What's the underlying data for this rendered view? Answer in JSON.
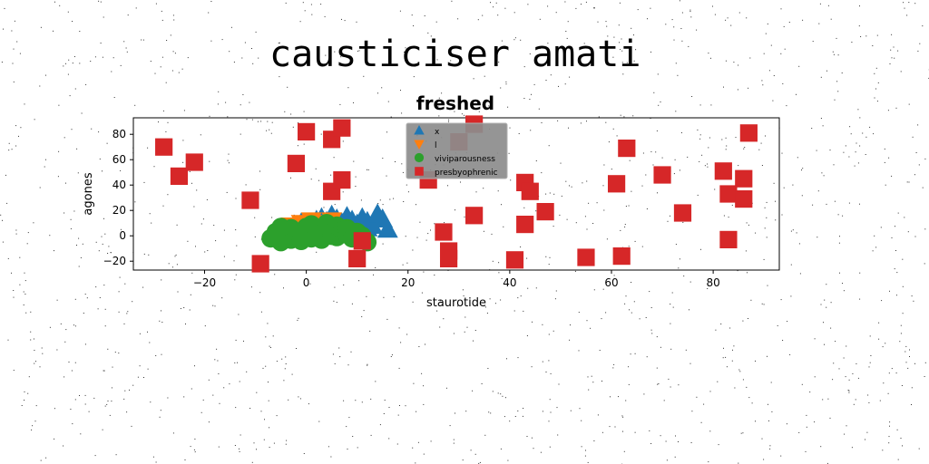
{
  "page": {
    "title": "causticiser amati"
  },
  "chart_data": {
    "type": "scatter",
    "title": "freshed",
    "xlabel": "staurotide",
    "ylabel": "agones",
    "xlim": [
      -34,
      93
    ],
    "ylim": [
      -27,
      93
    ],
    "xticks": [
      -20,
      0,
      20,
      40,
      60,
      80
    ],
    "yticks": [
      -20,
      0,
      20,
      40,
      60,
      80
    ],
    "tick_labels_x": [
      "−20",
      "0",
      "20",
      "40",
      "60",
      "80"
    ],
    "tick_labels_y": [
      "−20",
      "0",
      "20",
      "40",
      "60",
      "80"
    ],
    "grid": false,
    "legend_position": "top-center",
    "series": [
      {
        "name": "x",
        "marker": "triangle-up",
        "color": "#1f77b4",
        "points": [
          [
            2,
            12
          ],
          [
            3,
            14
          ],
          [
            4,
            11
          ],
          [
            5,
            16
          ],
          [
            6,
            13
          ],
          [
            7,
            10
          ],
          [
            8,
            15
          ],
          [
            9,
            12
          ],
          [
            10,
            9
          ],
          [
            11,
            14
          ],
          [
            12,
            11
          ],
          [
            13,
            8
          ],
          [
            14,
            17
          ],
          [
            15,
            13
          ],
          [
            16,
            5
          ],
          [
            12,
            6
          ],
          [
            9,
            7
          ],
          [
            6,
            8
          ],
          [
            4,
            6
          ],
          [
            1,
            9
          ],
          [
            -1,
            10
          ]
        ]
      },
      {
        "name": "l",
        "marker": "triangle-down",
        "color": "#ff7f0e",
        "points": [
          [
            -3,
            8
          ],
          [
            -1,
            10
          ],
          [
            1,
            12
          ],
          [
            3,
            10
          ],
          [
            5,
            12
          ],
          [
            -4,
            5
          ],
          [
            -2,
            6
          ],
          [
            2,
            7
          ],
          [
            4,
            9
          ],
          [
            0,
            4
          ]
        ]
      },
      {
        "name": "viviparousness",
        "marker": "circle",
        "color": "#2ca02c",
        "points": [
          [
            -7,
            -2
          ],
          [
            -6,
            3
          ],
          [
            -5,
            0
          ],
          [
            -5,
            -5
          ],
          [
            -4,
            4
          ],
          [
            -4,
            1
          ],
          [
            -3,
            -3
          ],
          [
            -3,
            6
          ],
          [
            -2,
            0
          ],
          [
            -2,
            3
          ],
          [
            -1,
            -4
          ],
          [
            -1,
            2
          ],
          [
            0,
            7
          ],
          [
            0,
            -1
          ],
          [
            1,
            4
          ],
          [
            1,
            -2
          ],
          [
            1,
            9
          ],
          [
            2,
            1
          ],
          [
            2,
            5
          ],
          [
            3,
            -3
          ],
          [
            3,
            3
          ],
          [
            4,
            6
          ],
          [
            4,
            10
          ],
          [
            5,
            0
          ],
          [
            5,
            3
          ],
          [
            6,
            -1
          ],
          [
            6,
            8
          ],
          [
            7,
            4
          ],
          [
            8,
            1
          ],
          [
            8,
            6
          ],
          [
            9,
            -2
          ],
          [
            10,
            3
          ],
          [
            11,
            0
          ],
          [
            12,
            -5
          ],
          [
            -5,
            7
          ],
          [
            -6,
            -1
          ]
        ]
      },
      {
        "name": "presbyophrenic",
        "marker": "square",
        "color": "#d62728",
        "points": [
          [
            -28,
            70
          ],
          [
            -25,
            47
          ],
          [
            -22,
            58
          ],
          [
            -11,
            28
          ],
          [
            -9,
            -22
          ],
          [
            -2,
            57
          ],
          [
            0,
            82
          ],
          [
            5,
            35
          ],
          [
            5,
            76
          ],
          [
            7,
            85
          ],
          [
            7,
            44
          ],
          [
            10,
            -18
          ],
          [
            11,
            -4
          ],
          [
            24,
            44
          ],
          [
            27,
            3
          ],
          [
            28,
            -12
          ],
          [
            28,
            -18
          ],
          [
            30,
            74
          ],
          [
            33,
            16
          ],
          [
            33,
            88
          ],
          [
            41,
            -19
          ],
          [
            43,
            9
          ],
          [
            43,
            42
          ],
          [
            44,
            35
          ],
          [
            47,
            19
          ],
          [
            55,
            -17
          ],
          [
            61,
            41
          ],
          [
            62,
            -16
          ],
          [
            63,
            69
          ],
          [
            70,
            48
          ],
          [
            74,
            18
          ],
          [
            82,
            51
          ],
          [
            83,
            -3
          ],
          [
            83,
            33
          ],
          [
            86,
            45
          ],
          [
            86,
            29
          ],
          [
            87,
            81
          ]
        ]
      }
    ]
  }
}
